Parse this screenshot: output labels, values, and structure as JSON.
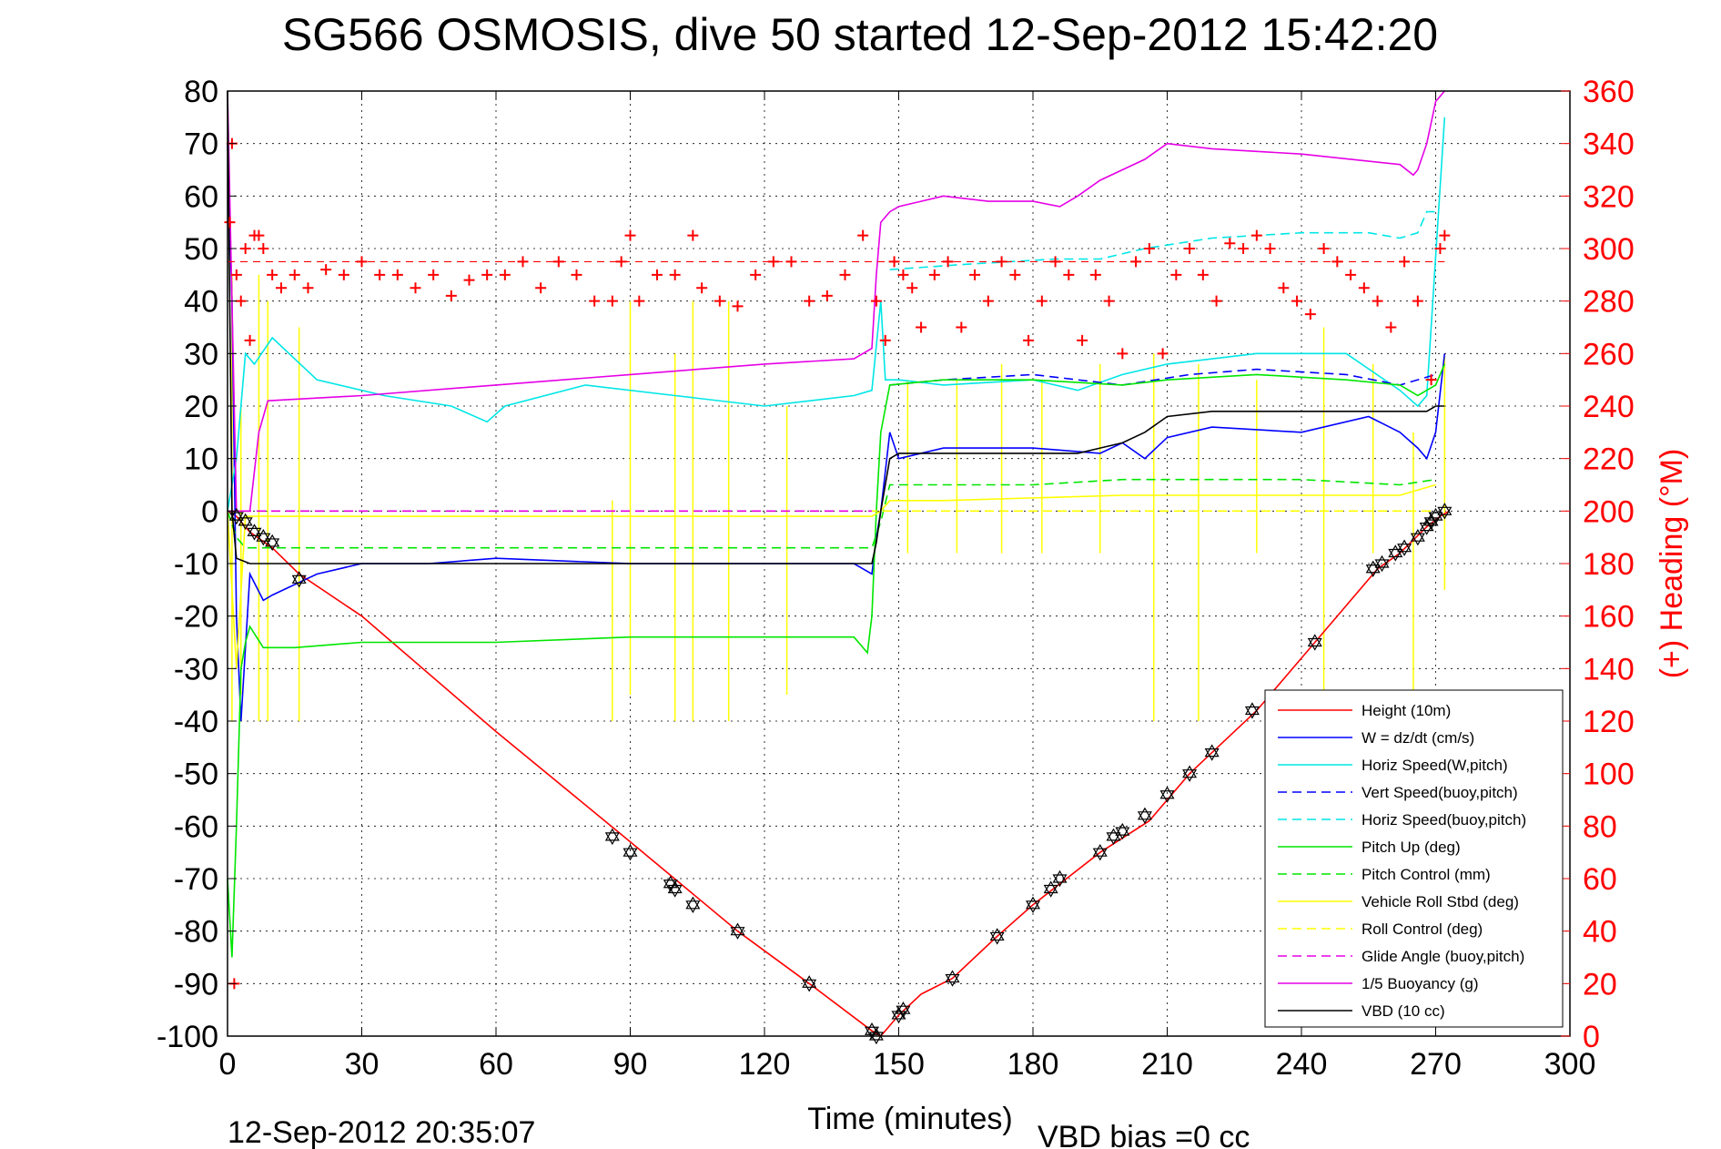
{
  "chart_data": {
    "type": "line",
    "title": "SG566 OSMOSIS, dive 50 started 12-Sep-2012 15:42:20",
    "xlabel": "Time (minutes)",
    "ylabel": "",
    "y2label": "(+) Heading (°M)",
    "xlim": [
      0,
      300
    ],
    "ylim": [
      -100,
      80
    ],
    "y2lim": [
      0,
      360
    ],
    "x_ticks": [
      "0",
      "30",
      "60",
      "90",
      "120",
      "150",
      "180",
      "210",
      "240",
      "270",
      "300"
    ],
    "y_ticks": [
      "80",
      "70",
      "60",
      "50",
      "40",
      "30",
      "20",
      "10",
      "0",
      "-10",
      "-20",
      "-30",
      "-40",
      "-50",
      "-60",
      "-70",
      "-80",
      "-90",
      "-100"
    ],
    "y2_ticks": [
      "360",
      "340",
      "320",
      "300",
      "280",
      "260",
      "240",
      "220",
      "200",
      "180",
      "160",
      "140",
      "120",
      "100",
      "80",
      "60",
      "40",
      "20",
      "0"
    ],
    "grid": true,
    "legend_position": "bottom-right",
    "footer_left": "12-Sep-2012 20:35:07",
    "footer_right": "VBD bias =0 cc",
    "series": [
      {
        "name": "Height (10m)",
        "color": "#ff0000",
        "style": "solid",
        "x": [
          0,
          2,
          5,
          10,
          16,
          30,
          60,
          90,
          114,
          130,
          144,
          146,
          150,
          155,
          162,
          172,
          180,
          186,
          195,
          206,
          215,
          220,
          230,
          243,
          257,
          262,
          268,
          271,
          273
        ],
        "y": [
          0,
          -1,
          -4,
          -7,
          -12,
          -20,
          -42,
          -63,
          -80,
          -90,
          -99,
          -100,
          -96,
          -92,
          -89,
          -81,
          -75,
          -71,
          -65,
          -59,
          -50,
          -46,
          -38,
          -25,
          -11,
          -8,
          -3,
          -1,
          0
        ]
      },
      {
        "name": "W = dz/dt (cm/s)",
        "color": "#0000ff",
        "style": "solid",
        "x": [
          0,
          1,
          2,
          3,
          5,
          8,
          10,
          20,
          30,
          45,
          60,
          90,
          120,
          140,
          144,
          145,
          146,
          148,
          150,
          160,
          180,
          195,
          200,
          205,
          210,
          220,
          240,
          255,
          262,
          266,
          268,
          270,
          272
        ],
        "y": [
          70,
          40,
          -20,
          -40,
          -12,
          -17,
          -16,
          -12,
          -10,
          -10,
          -9,
          -10,
          -10,
          -10,
          -12,
          -5,
          0,
          15,
          10,
          12,
          12,
          11,
          13,
          10,
          14,
          16,
          15,
          18,
          15,
          12,
          10,
          15,
          30
        ]
      },
      {
        "name": "Horiz Speed(W,pitch)",
        "color": "#00e6e6",
        "style": "solid",
        "x": [
          0,
          2,
          4,
          6,
          10,
          20,
          35,
          50,
          58,
          62,
          80,
          100,
          120,
          140,
          144,
          146,
          147,
          150,
          160,
          180,
          190,
          200,
          210,
          230,
          250,
          262,
          266,
          268,
          272
        ],
        "y": [
          0,
          10,
          30,
          28,
          33,
          25,
          22,
          20,
          17,
          20,
          24,
          22,
          20,
          22,
          23,
          40,
          25,
          25,
          24,
          25,
          23,
          26,
          28,
          30,
          30,
          23,
          20,
          22,
          75
        ]
      },
      {
        "name": "Vert Speed(buoy,pitch)",
        "color": "#0000ff",
        "style": "dashed",
        "x": [
          148,
          160,
          180,
          200,
          215,
          230,
          250,
          262,
          270
        ],
        "y": [
          24,
          25,
          26,
          24,
          26,
          27,
          26,
          24,
          26
        ]
      },
      {
        "name": "Horiz Speed(buoy,pitch)",
        "color": "#00e6e6",
        "style": "dashed",
        "x": [
          148,
          165,
          185,
          195,
          205,
          220,
          240,
          255,
          262,
          266,
          268,
          270
        ],
        "y": [
          46,
          47,
          48,
          48,
          50,
          52,
          53,
          53,
          52,
          53,
          57,
          57
        ]
      },
      {
        "name": "Pitch Up (deg)",
        "color": "#00e600",
        "style": "solid",
        "x": [
          0,
          1,
          2,
          3,
          4,
          5,
          8,
          15,
          30,
          60,
          90,
          120,
          140,
          143,
          144,
          145,
          146,
          148,
          160,
          180,
          200,
          210,
          230,
          250,
          262,
          266,
          270,
          272
        ],
        "y": [
          -70,
          -85,
          -60,
          -30,
          -25,
          -22,
          -26,
          -26,
          -25,
          -25,
          -24,
          -24,
          -24,
          -27,
          -20,
          0,
          15,
          24,
          25,
          25,
          24,
          25,
          26,
          25,
          24,
          22,
          24,
          28
        ]
      },
      {
        "name": "Pitch Control (mm)",
        "color": "#00e600",
        "style": "dashed",
        "x": [
          0,
          2,
          4,
          144,
          146,
          148,
          180,
          200,
          210,
          240,
          262,
          270
        ],
        "y": [
          0,
          -5,
          -7,
          -7,
          -2,
          5,
          5,
          6,
          6,
          6,
          5,
          6
        ]
      },
      {
        "name": "Vehicle Roll Stbd (deg)",
        "color": "#ffff00",
        "style": "solid",
        "x": [
          0,
          2,
          4,
          10,
          60,
          120,
          144,
          146,
          148,
          160,
          200,
          240,
          262,
          270
        ],
        "y": [
          0,
          -30,
          -1,
          -1,
          -1,
          -1,
          -1,
          0,
          2,
          2,
          3,
          3,
          3,
          5
        ]
      },
      {
        "name": "Roll Control (deg)",
        "color": "#ffff00",
        "style": "dashed",
        "x": [
          0,
          144,
          146,
          148,
          200,
          262,
          270
        ],
        "y": [
          0,
          0,
          0,
          0,
          0,
          0,
          0
        ]
      },
      {
        "name": "Glide Angle (buoy,pitch)",
        "color": "#e600e6",
        "style": "dashed",
        "x": [
          0,
          144
        ],
        "y": [
          0,
          0
        ]
      },
      {
        "name": "1/5 Buoyancy (g)",
        "color": "#e600e6",
        "style": "solid",
        "x": [
          0,
          2,
          5,
          7,
          9,
          30,
          60,
          90,
          120,
          140,
          144,
          145,
          146,
          148,
          150,
          155,
          160,
          170,
          180,
          186,
          190,
          195,
          200,
          205,
          210,
          220,
          240,
          262,
          265,
          266,
          268,
          270,
          272
        ],
        "y": [
          80,
          0,
          0,
          15,
          21,
          22,
          24,
          26,
          28,
          29,
          31,
          45,
          55,
          57,
          58,
          59,
          60,
          59,
          59,
          58,
          60,
          63,
          65,
          67,
          70,
          69,
          68,
          66,
          64,
          65,
          70,
          78,
          80
        ]
      },
      {
        "name": "VBD (10 cc)",
        "color": "#000000",
        "style": "solid",
        "x": [
          0,
          1,
          2,
          5,
          10,
          60,
          120,
          144,
          145,
          146,
          148,
          150,
          160,
          180,
          190,
          195,
          200,
          205,
          210,
          220,
          240,
          262,
          268,
          270,
          272
        ],
        "y": [
          80,
          0,
          -9,
          -10,
          -10,
          -10,
          -10,
          -10,
          -6,
          0,
          10,
          11,
          11,
          11,
          11,
          12,
          13,
          15,
          18,
          19,
          19,
          19,
          19,
          20,
          20
        ]
      }
    ],
    "heading_series": {
      "name": "(+) Heading",
      "color": "#ff0000",
      "marker": "+",
      "axis": "right",
      "x": [
        0.5,
        1,
        1.5,
        2,
        3,
        4,
        5,
        6,
        7,
        8,
        10,
        12,
        15,
        18,
        22,
        26,
        30,
        34,
        38,
        42,
        46,
        50,
        54,
        58,
        62,
        66,
        70,
        74,
        78,
        82,
        86,
        88,
        90,
        92,
        96,
        100,
        104,
        106,
        110,
        114,
        118,
        122,
        126,
        130,
        134,
        138,
        142,
        145,
        147,
        149,
        151,
        153,
        155,
        158,
        161,
        164,
        167,
        170,
        173,
        176,
        179,
        182,
        185,
        188,
        191,
        194,
        197,
        200,
        203,
        206,
        209,
        212,
        215,
        218,
        221,
        224,
        227,
        230,
        233,
        236,
        239,
        242,
        245,
        248,
        251,
        254,
        257,
        260,
        263,
        266,
        269,
        271,
        272
      ],
      "y": [
        310,
        340,
        20,
        290,
        280,
        300,
        265,
        305,
        305,
        300,
        290,
        285,
        290,
        285,
        292,
        290,
        295,
        290,
        290,
        285,
        290,
        282,
        288,
        290,
        290,
        295,
        285,
        295,
        290,
        280,
        280,
        295,
        305,
        280,
        290,
        290,
        305,
        285,
        280,
        278,
        290,
        295,
        295,
        280,
        282,
        290,
        305,
        280,
        265,
        295,
        290,
        285,
        270,
        290,
        295,
        270,
        290,
        280,
        295,
        290,
        265,
        280,
        295,
        290,
        265,
        290,
        280,
        260,
        295,
        300,
        260,
        290,
        300,
        290,
        280,
        302,
        300,
        305,
        300,
        285,
        280,
        275,
        300,
        295,
        290,
        285,
        280,
        270,
        295,
        280,
        250,
        300,
        305
      ]
    },
    "heading_reference": {
      "color": "#ff0000",
      "style": "dashed",
      "value": 295
    },
    "glide_markers": {
      "color": "#000000",
      "x": [
        2,
        4,
        6,
        8,
        10,
        16,
        86,
        90,
        99,
        100,
        104,
        114,
        130,
        144,
        145,
        150,
        151,
        162,
        172,
        180,
        184,
        186,
        195,
        198,
        200,
        205,
        210,
        215,
        220,
        229,
        243,
        256,
        258,
        261,
        263,
        266,
        268,
        269,
        270,
        272
      ],
      "y": [
        -1,
        -2,
        -4,
        -5,
        -6,
        -13,
        -62,
        -65,
        -71,
        -72,
        -75,
        -80,
        -90,
        -99,
        -100,
        -96,
        -95,
        -89,
        -81,
        -75,
        -72,
        -70,
        -65,
        -62,
        -61,
        -58,
        -54,
        -50,
        -46,
        -38,
        -25,
        -11,
        -10,
        -8,
        -7,
        -5,
        -3,
        -2,
        -1,
        0
      ]
    },
    "yellow_spikes": {
      "color": "#ffff00",
      "x": [
        1,
        3,
        7,
        9,
        16,
        86,
        90,
        100,
        104,
        112,
        125,
        152,
        163,
        173,
        182,
        195,
        207,
        217,
        230,
        245,
        256,
        265,
        272
      ],
      "y_top": [
        45,
        20,
        45,
        40,
        35,
        2,
        40,
        30,
        40,
        40,
        20,
        25,
        25,
        28,
        25,
        28,
        30,
        28,
        25,
        35,
        28,
        15,
        30
      ],
      "y_bottom": [
        -40,
        -35,
        -40,
        -40,
        -40,
        -40,
        -35,
        -40,
        -40,
        -40,
        -35,
        -8,
        -8,
        -8,
        -8,
        -8,
        -40,
        -40,
        -8,
        -40,
        -8,
        -40,
        -15
      ]
    }
  }
}
